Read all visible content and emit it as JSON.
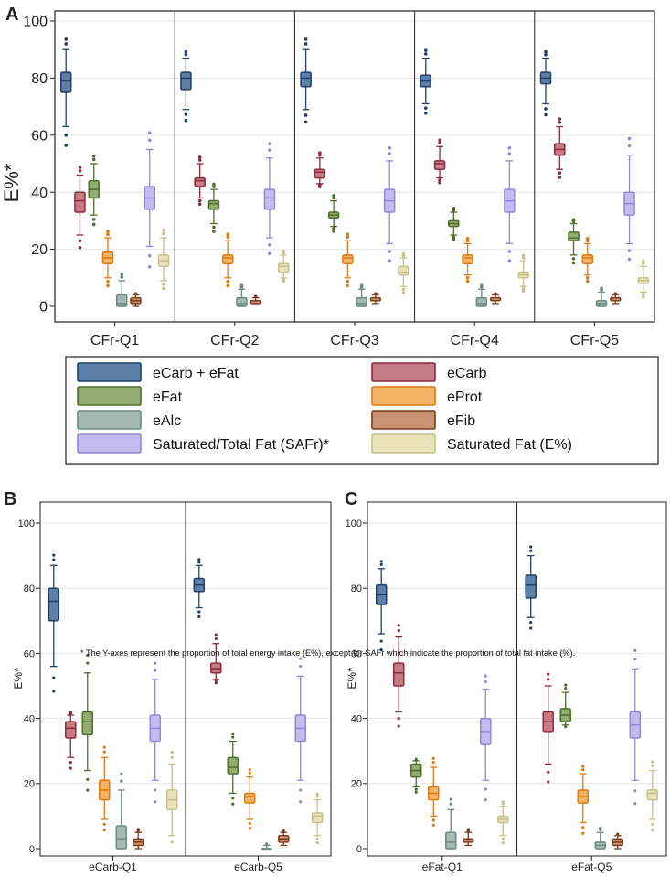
{
  "chart_data": {
    "type": "boxplot",
    "series_keys": [
      "carbfat",
      "carb",
      "fat",
      "prot",
      "alc",
      "fib",
      "safr",
      "safe"
    ],
    "styles": {
      "carbfat": {
        "fill": "#5d7fa8",
        "stroke": "#1f3f66"
      },
      "carb": {
        "fill": "#c57b83",
        "stroke": "#8a2a3a"
      },
      "fat": {
        "fill": "#93ac72",
        "stroke": "#4d6e2a"
      },
      "prot": {
        "fill": "#f4b468",
        "stroke": "#e07a10"
      },
      "alc": {
        "fill": "#a3b9b2",
        "stroke": "#6b8a82"
      },
      "fib": {
        "fill": "#c99273",
        "stroke": "#7a3c1c"
      },
      "safr": {
        "fill": "#c4bcef",
        "stroke": "#9088d6"
      },
      "safe": {
        "fill": "#e8e3b8",
        "stroke": "#c8c08a"
      }
    },
    "legend": {
      "items": [
        {
          "key": "carbfat",
          "label": "eCarb + eFat"
        },
        {
          "key": "carb",
          "label": "eCarb"
        },
        {
          "key": "fat",
          "label": "eFat"
        },
        {
          "key": "prot",
          "label": "eProt"
        },
        {
          "key": "alc",
          "label": "eAlc"
        },
        {
          "key": "fib",
          "label": "eFib"
        },
        {
          "key": "safr",
          "label": "Saturated/Total Fat (SAFr)*"
        },
        {
          "key": "safe",
          "label": "Saturated Fat (E%)"
        }
      ]
    },
    "footnote": "* The Y-axes represent the proportion of total energy intake (E%), except for SAFr which indicate the proportion of total fat intake (%).",
    "panels": [
      {
        "letter": "A",
        "ylabel": "E%*",
        "ylim": [
          0,
          100
        ],
        "yticks": [
          0,
          20,
          40,
          60,
          80,
          100
        ],
        "groups": [
          {
            "label": "CFr-Q1",
            "series": {
              "carbfat": [
                63,
                75,
                79,
                82,
                90
              ],
              "carb": [
                25,
                33,
                37,
                40,
                46
              ],
              "fat": [
                32,
                38,
                41,
                44,
                50
              ],
              "prot": [
                10,
                15,
                17,
                19,
                24
              ],
              "alc": [
                0,
                0,
                1,
                4,
                9
              ],
              "fib": [
                0,
                1,
                2,
                3,
                4
              ],
              "safr": [
                21,
                34,
                38,
                42,
                55
              ],
              "safe": [
                9,
                14,
                16,
                18,
                24
              ]
            }
          },
          {
            "label": "CFr-Q2",
            "series": {
              "carbfat": [
                69,
                76,
                80,
                82,
                87
              ],
              "carb": [
                38,
                42,
                44,
                45,
                50
              ],
              "fat": [
                29,
                34,
                36,
                37,
                41
              ],
              "prot": [
                10,
                15,
                17,
                18,
                23
              ],
              "alc": [
                0,
                0,
                1,
                3,
                6
              ],
              "fib": [
                1,
                1,
                2,
                2,
                3
              ],
              "safr": [
                24,
                34,
                38,
                41,
                52
              ],
              "safe": [
                10,
                12,
                14,
                15,
                18
              ]
            }
          },
          {
            "label": "CFr-Q3",
            "series": {
              "carbfat": [
                69,
                77,
                80,
                82,
                90
              ],
              "carb": [
                43,
                45,
                47,
                48,
                52
              ],
              "fat": [
                28,
                31,
                32,
                33,
                37
              ],
              "prot": [
                10,
                15,
                17,
                18,
                23
              ],
              "alc": [
                0,
                0,
                1,
                3,
                6
              ],
              "fib": [
                1,
                2,
                2,
                3,
                4
              ],
              "safr": [
                22,
                33,
                37,
                41,
                51
              ],
              "safe": [
                7,
                11,
                12,
                14,
                17
              ]
            }
          },
          {
            "label": "CFr-Q4",
            "series": {
              "carbfat": [
                71,
                77,
                79,
                81,
                87
              ],
              "carb": [
                45,
                48,
                50,
                51,
                56
              ],
              "fat": [
                25,
                28,
                29,
                30,
                33
              ],
              "prot": [
                11,
                15,
                17,
                18,
                22
              ],
              "alc": [
                0,
                0,
                1,
                3,
                6
              ],
              "fib": [
                1,
                2,
                3,
                3,
                4
              ],
              "safr": [
                22,
                33,
                37,
                41,
                51
              ],
              "safe": [
                7,
                10,
                11,
                12,
                16
              ]
            }
          },
          {
            "label": "CFr-Q5",
            "series": {
              "carbfat": [
                71,
                78,
                80,
                82,
                87
              ],
              "carb": [
                48,
                53,
                55,
                57,
                63
              ],
              "fat": [
                18,
                23,
                24,
                26,
                29
              ],
              "prot": [
                11,
                15,
                17,
                18,
                22
              ],
              "alc": [
                0,
                0,
                1,
                2,
                5
              ],
              "fib": [
                1,
                2,
                3,
                3,
                4
              ],
              "safr": [
                22,
                32,
                36,
                40,
                53
              ],
              "safe": [
                5,
                8,
                9,
                10,
                14
              ]
            }
          }
        ]
      },
      {
        "letter": "B",
        "ylabel": "E%*",
        "ylim": [
          0,
          100
        ],
        "yticks": [
          0,
          20,
          40,
          60,
          80,
          100
        ],
        "groups": [
          {
            "label": "eCarb-Q1",
            "series": {
              "carbfat": [
                56,
                70,
                76,
                80,
                87
              ],
              "carb": [
                28,
                34,
                37,
                39,
                41
              ],
              "fat": [
                24,
                35,
                39,
                42,
                54
              ],
              "prot": [
                9,
                15,
                18,
                21,
                28
              ],
              "alc": [
                0,
                0,
                3,
                7,
                18
              ],
              "fib": [
                0,
                1,
                2,
                3,
                5
              ],
              "safr": [
                21,
                33,
                37,
                41,
                52
              ],
              "safe": [
                4,
                12,
                15,
                18,
                26
              ]
            }
          },
          {
            "label": "eCarb-Q5",
            "series": {
              "carbfat": [
                74,
                79,
                81,
                83,
                87
              ],
              "carb": [
                52,
                54,
                55,
                57,
                63
              ],
              "fat": [
                17,
                23,
                25,
                28,
                33
              ],
              "prot": [
                9,
                14,
                16,
                17,
                22
              ],
              "alc": [
                0,
                0,
                0,
                0,
                1
              ],
              "fib": [
                1,
                2,
                3,
                4,
                5
              ],
              "safr": [
                21,
                33,
                37,
                41,
                53
              ],
              "safe": [
                4,
                8,
                10,
                11,
                15
              ]
            }
          }
        ]
      },
      {
        "letter": "C",
        "ylabel": "E%*",
        "ylim": [
          0,
          100
        ],
        "yticks": [
          0,
          20,
          40,
          60,
          80,
          100
        ],
        "groups": [
          {
            "label": "eFat-Q1",
            "series": {
              "carbfat": [
                66,
                75,
                78,
                81,
                86
              ],
              "carb": [
                42,
                50,
                54,
                57,
                65
              ],
              "fat": [
                19,
                22,
                24,
                26,
                27
              ],
              "prot": [
                10,
                15,
                17,
                19,
                25
              ],
              "alc": [
                0,
                0,
                2,
                5,
                12
              ],
              "fib": [
                1,
                2,
                3,
                3,
                5
              ],
              "safr": [
                21,
                32,
                36,
                40,
                49
              ],
              "safe": [
                4,
                8,
                9,
                10,
                13
              ]
            }
          },
          {
            "label": "eFat-Q5",
            "series": {
              "carbfat": [
                71,
                77,
                81,
                84,
                90
              ],
              "carb": [
                26,
                36,
                39,
                42,
                50
              ],
              "fat": [
                38,
                39,
                41,
                43,
                48
              ],
              "prot": [
                8,
                14,
                16,
                18,
                23
              ],
              "alc": [
                0,
                0,
                1,
                2,
                5
              ],
              "fib": [
                0,
                1,
                2,
                3,
                4
              ],
              "safr": [
                21,
                34,
                38,
                42,
                55
              ],
              "safe": [
                9,
                15,
                17,
                18,
                24
              ]
            }
          }
        ]
      }
    ]
  }
}
